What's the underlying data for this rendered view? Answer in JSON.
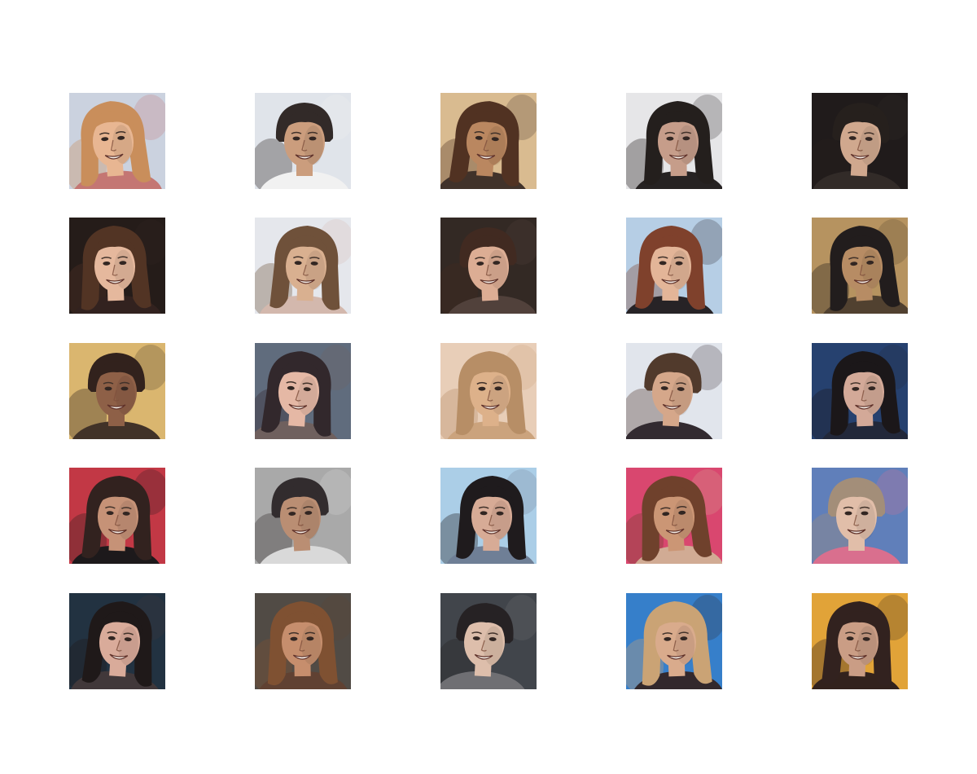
{
  "figure": {
    "rows": 5,
    "columns": 5,
    "background": "#ffffff",
    "tiles": [
      {
        "name": "face-r1-c1",
        "bg": "#c9d1de",
        "hair": "#c78a55",
        "skin": "#e8b48e",
        "shirt": "#c2716e"
      },
      {
        "name": "face-r1-c2",
        "bg": "#dfe3ea",
        "hair": "#2a2220",
        "skin": "#c99a78",
        "shirt": "#f1f1f1"
      },
      {
        "name": "face-r1-c3",
        "bg": "#d8b98c",
        "hair": "#4a2a1a",
        "skin": "#b8835a",
        "shirt": "#3a2a22"
      },
      {
        "name": "face-r1-c4",
        "bg": "#e5e5e8",
        "hair": "#1c1614",
        "skin": "#c49a86",
        "shirt": "#1e1a1a"
      },
      {
        "name": "face-r1-c5",
        "bg": "#171212",
        "hair": "#1e1714",
        "skin": "#cfa58a",
        "shirt": "#2a2320"
      },
      {
        "name": "face-r2-c1",
        "bg": "#1d1310",
        "hair": "#4b2c1c",
        "skin": "#e4b699",
        "shirt": "#2a1a16"
      },
      {
        "name": "face-r2-c2",
        "bg": "#e4e6ec",
        "hair": "#6a4a32",
        "skin": "#d8ad8c",
        "shirt": "#d2b6aa"
      },
      {
        "name": "face-r2-c3",
        "bg": "#2b211c",
        "hair": "#3a2218",
        "skin": "#dbaa90",
        "shirt": "#4a3a34"
      },
      {
        "name": "face-r2-c4",
        "bg": "#b4cde4",
        "hair": "#7a3a24",
        "skin": "#e2b294",
        "shirt": "#1f1b1e"
      },
      {
        "name": "face-r2-c5",
        "bg": "#b38f5a",
        "hair": "#1a1414",
        "skin": "#b5885e",
        "shirt": "#4a3a28"
      },
      {
        "name": "face-r3-c1",
        "bg": "#d9b46a",
        "hair": "#2a1a14",
        "skin": "#8a5a40",
        "shirt": "#3a2a20"
      },
      {
        "name": "face-r3-c2",
        "bg": "#5a6678",
        "hair": "#2a2024",
        "skin": "#e4b6a2",
        "shirt": "#6a5a58"
      },
      {
        "name": "face-r3-c3",
        "bg": "#e8cdb6",
        "hair": "#b58a60",
        "skin": "#dcae86",
        "shirt": "#c9a078"
      },
      {
        "name": "face-r3-c4",
        "bg": "#e0e4ec",
        "hair": "#4a3224",
        "skin": "#d4a486",
        "shirt": "#2a2228"
      },
      {
        "name": "face-r3-c5",
        "bg": "#1e3a6a",
        "hair": "#120e10",
        "skin": "#d2a694",
        "shirt": "#1a2032"
      },
      {
        "name": "face-r4-c1",
        "bg": "#c0303e",
        "hair": "#2a1a16",
        "skin": "#c48e72",
        "shirt": "#141012"
      },
      {
        "name": "face-r4-c2",
        "bg": "#a6a6a6",
        "hair": "#2a2426",
        "skin": "#b88a6e",
        "shirt": "#d8d8d8"
      },
      {
        "name": "face-r4-c3",
        "bg": "#a8cce6",
        "hair": "#161214",
        "skin": "#d6a892",
        "shirt": "#6a7a92"
      },
      {
        "name": "face-r4-c4",
        "bg": "#d8406a",
        "hair": "#6a3a24",
        "skin": "#c99270",
        "shirt": "#d0a890"
      },
      {
        "name": "face-r4-c5",
        "bg": "#5a7ab8",
        "hair": "#a08a74",
        "skin": "#e0bca6",
        "shirt": "#d86a8a"
      },
      {
        "name": "face-r5-c1",
        "bg": "#1a2a3a",
        "hair": "#161010",
        "skin": "#d8a896",
        "shirt": "#3a3032"
      },
      {
        "name": "face-r5-c2",
        "bg": "#4a443e",
        "hair": "#7a4a2a",
        "skin": "#c48a68",
        "shirt": "#5a3a2a"
      },
      {
        "name": "face-r5-c3",
        "bg": "#3a3e44",
        "hair": "#1e1a1c",
        "skin": "#dcbca8",
        "shirt": "#6a6a6e"
      },
      {
        "name": "face-r5-c4",
        "bg": "#2e7ac8",
        "hair": "#c8a070",
        "skin": "#d8a888",
        "shirt": "#2a2024"
      },
      {
        "name": "face-r5-c5",
        "bg": "#e0a030",
        "hair": "#2a1a16",
        "skin": "#c89a80",
        "shirt": "#2a1a14"
      }
    ]
  }
}
